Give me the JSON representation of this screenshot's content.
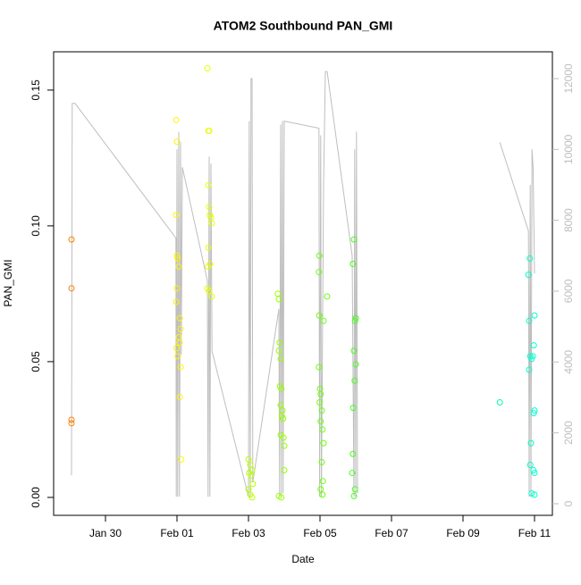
{
  "chart_data": {
    "type": "scatter",
    "title": "ATOM2 Southbound PAN_GMI",
    "x_label": "Date",
    "y_label": "PAN_GMI",
    "xlim": [
      28.55,
      42.5
    ],
    "xticks": [
      {
        "value": 30,
        "label": "Jan 30"
      },
      {
        "value": 32,
        "label": "Feb 01"
      },
      {
        "value": 34,
        "label": "Feb 03"
      },
      {
        "value": 36,
        "label": "Feb 05"
      },
      {
        "value": 38,
        "label": "Feb 07"
      },
      {
        "value": 40,
        "label": "Feb 09"
      },
      {
        "value": 42,
        "label": "Feb 11"
      }
    ],
    "ylim": [
      -0.0066,
      0.1641
    ],
    "yticks": [
      {
        "value": 0,
        "label": "0.00"
      },
      0.05,
      {
        "value": 0.1,
        "label": "0.10"
      },
      0.15
    ],
    "y2lim": [
      -328,
      12756
    ],
    "y2ticks": [
      0,
      2000,
      4000,
      6000,
      8000,
      10000,
      12000
    ],
    "color_stops": [
      "#ff8000",
      "#ffff00",
      "#80ff00",
      "#00ff40",
      "#00ffd0"
    ],
    "series": [
      {
        "x": [
          29.05,
          29.05,
          29.05,
          29.05,
          31.98,
          32.0,
          31.98,
          32.0,
          32.02,
          32.05,
          32.0,
          31.98,
          32.08,
          32.1,
          32.05,
          32.07,
          31.99,
          32.02,
          32.1,
          32.08,
          32.12,
          32.85,
          32.88,
          32.9,
          32.88,
          32.9,
          32.92,
          32.95,
          32.97,
          32.88,
          32.93,
          32.87,
          32.85,
          32.9,
          32.97,
          34.0,
          34.05,
          34.1,
          34.02,
          34.07,
          34.12,
          34.0,
          34.05,
          34.1,
          34.82,
          34.85,
          34.87,
          34.85,
          34.9,
          34.88,
          34.92,
          34.9,
          34.95,
          34.93,
          34.97,
          34.9,
          34.98,
          35.0,
          35.0,
          34.85,
          34.92,
          35.98,
          35.97,
          36.2,
          35.98,
          36.1,
          35.97,
          36.0,
          36.02,
          35.99,
          36.05,
          36.02,
          36.07,
          36.1,
          36.05,
          36.08,
          36.02,
          36.07,
          36.95,
          36.92,
          37.0,
          36.98,
          36.95,
          37.0,
          36.97,
          36.93,
          36.92,
          36.9,
          36.98,
          36.95,
          41.03,
          41.87,
          41.83,
          42.0,
          41.85,
          41.98,
          41.88,
          41.95,
          41.92,
          41.85,
          42.0,
          41.98,
          41.9,
          41.88,
          41.97,
          42.0,
          41.92,
          42.0
        ],
        "values": [
          0.095,
          0.077,
          0.0286,
          0.0273,
          0.139,
          0.131,
          0.104,
          0.089,
          0.088,
          0.085,
          0.077,
          0.072,
          0.066,
          0.062,
          0.059,
          0.057,
          0.055,
          0.052,
          0.048,
          0.037,
          0.014,
          0.158,
          0.135,
          0.135,
          0.115,
          0.107,
          0.104,
          0.103,
          0.101,
          0.092,
          0.086,
          0.085,
          0.077,
          0.076,
          0.074,
          0.014,
          0.012,
          0.01,
          0.009,
          0.008,
          0.005,
          0.003,
          0.001,
          0.0,
          0.075,
          0.073,
          0.057,
          0.054,
          0.051,
          0.041,
          0.04,
          0.034,
          0.032,
          0.03,
          0.029,
          0.023,
          0.022,
          0.019,
          0.01,
          0.0005,
          0.0,
          0.089,
          0.083,
          0.074,
          0.067,
          0.065,
          0.048,
          0.04,
          0.038,
          0.035,
          0.032,
          0.028,
          0.025,
          0.02,
          0.013,
          0.006,
          0.003,
          0.001,
          0.095,
          0.086,
          0.066,
          0.065,
          0.054,
          0.049,
          0.043,
          0.033,
          0.016,
          0.009,
          0.003,
          0.0005,
          0.035,
          0.088,
          0.082,
          0.067,
          0.065,
          0.056,
          0.052,
          0.052,
          0.051,
          0.047,
          0.032,
          0.031,
          0.02,
          0.012,
          0.01,
          0.009,
          0.0015,
          0.001
        ]
      },
      {
        "type": "line",
        "axis": "y2",
        "color": "#bebebe",
        "x": [
          29.05,
          29.07,
          29.15,
          31.97,
          31.98,
          32.0,
          32.02,
          32.05,
          32.07,
          32.1,
          32.12,
          32.15,
          32.85,
          32.87,
          32.9,
          32.92,
          32.95,
          32.98,
          34.0,
          34.02,
          34.05,
          34.07,
          34.1,
          34.12,
          34.85,
          34.87,
          34.9,
          34.92,
          34.95,
          34.97,
          35.0,
          35.97,
          35.99,
          36.02,
          36.04,
          36.1,
          36.15,
          36.2,
          36.9,
          36.95,
          36.97,
          37.0,
          37.02,
          37.05,
          null,
          41.03,
          41.83,
          41.85,
          41.88,
          41.9,
          41.93,
          41.96,
          42.0
        ],
        "values": [
          800,
          11300,
          11300,
          7500,
          200,
          10000,
          200,
          10500,
          200,
          10200,
          4200,
          9500,
          6300,
          200,
          9800,
          200,
          9600,
          4300,
          200,
          10800,
          200,
          12000,
          12000,
          600,
          5500,
          200,
          10700,
          200,
          10800,
          300,
          10800,
          10600,
          200,
          10400,
          200,
          9000,
          12200,
          12200,
          7000,
          200,
          10000,
          200,
          10500,
          300,
          null,
          10200,
          7700,
          200,
          9000,
          200,
          10000,
          9500,
          6500
        ]
      }
    ]
  }
}
